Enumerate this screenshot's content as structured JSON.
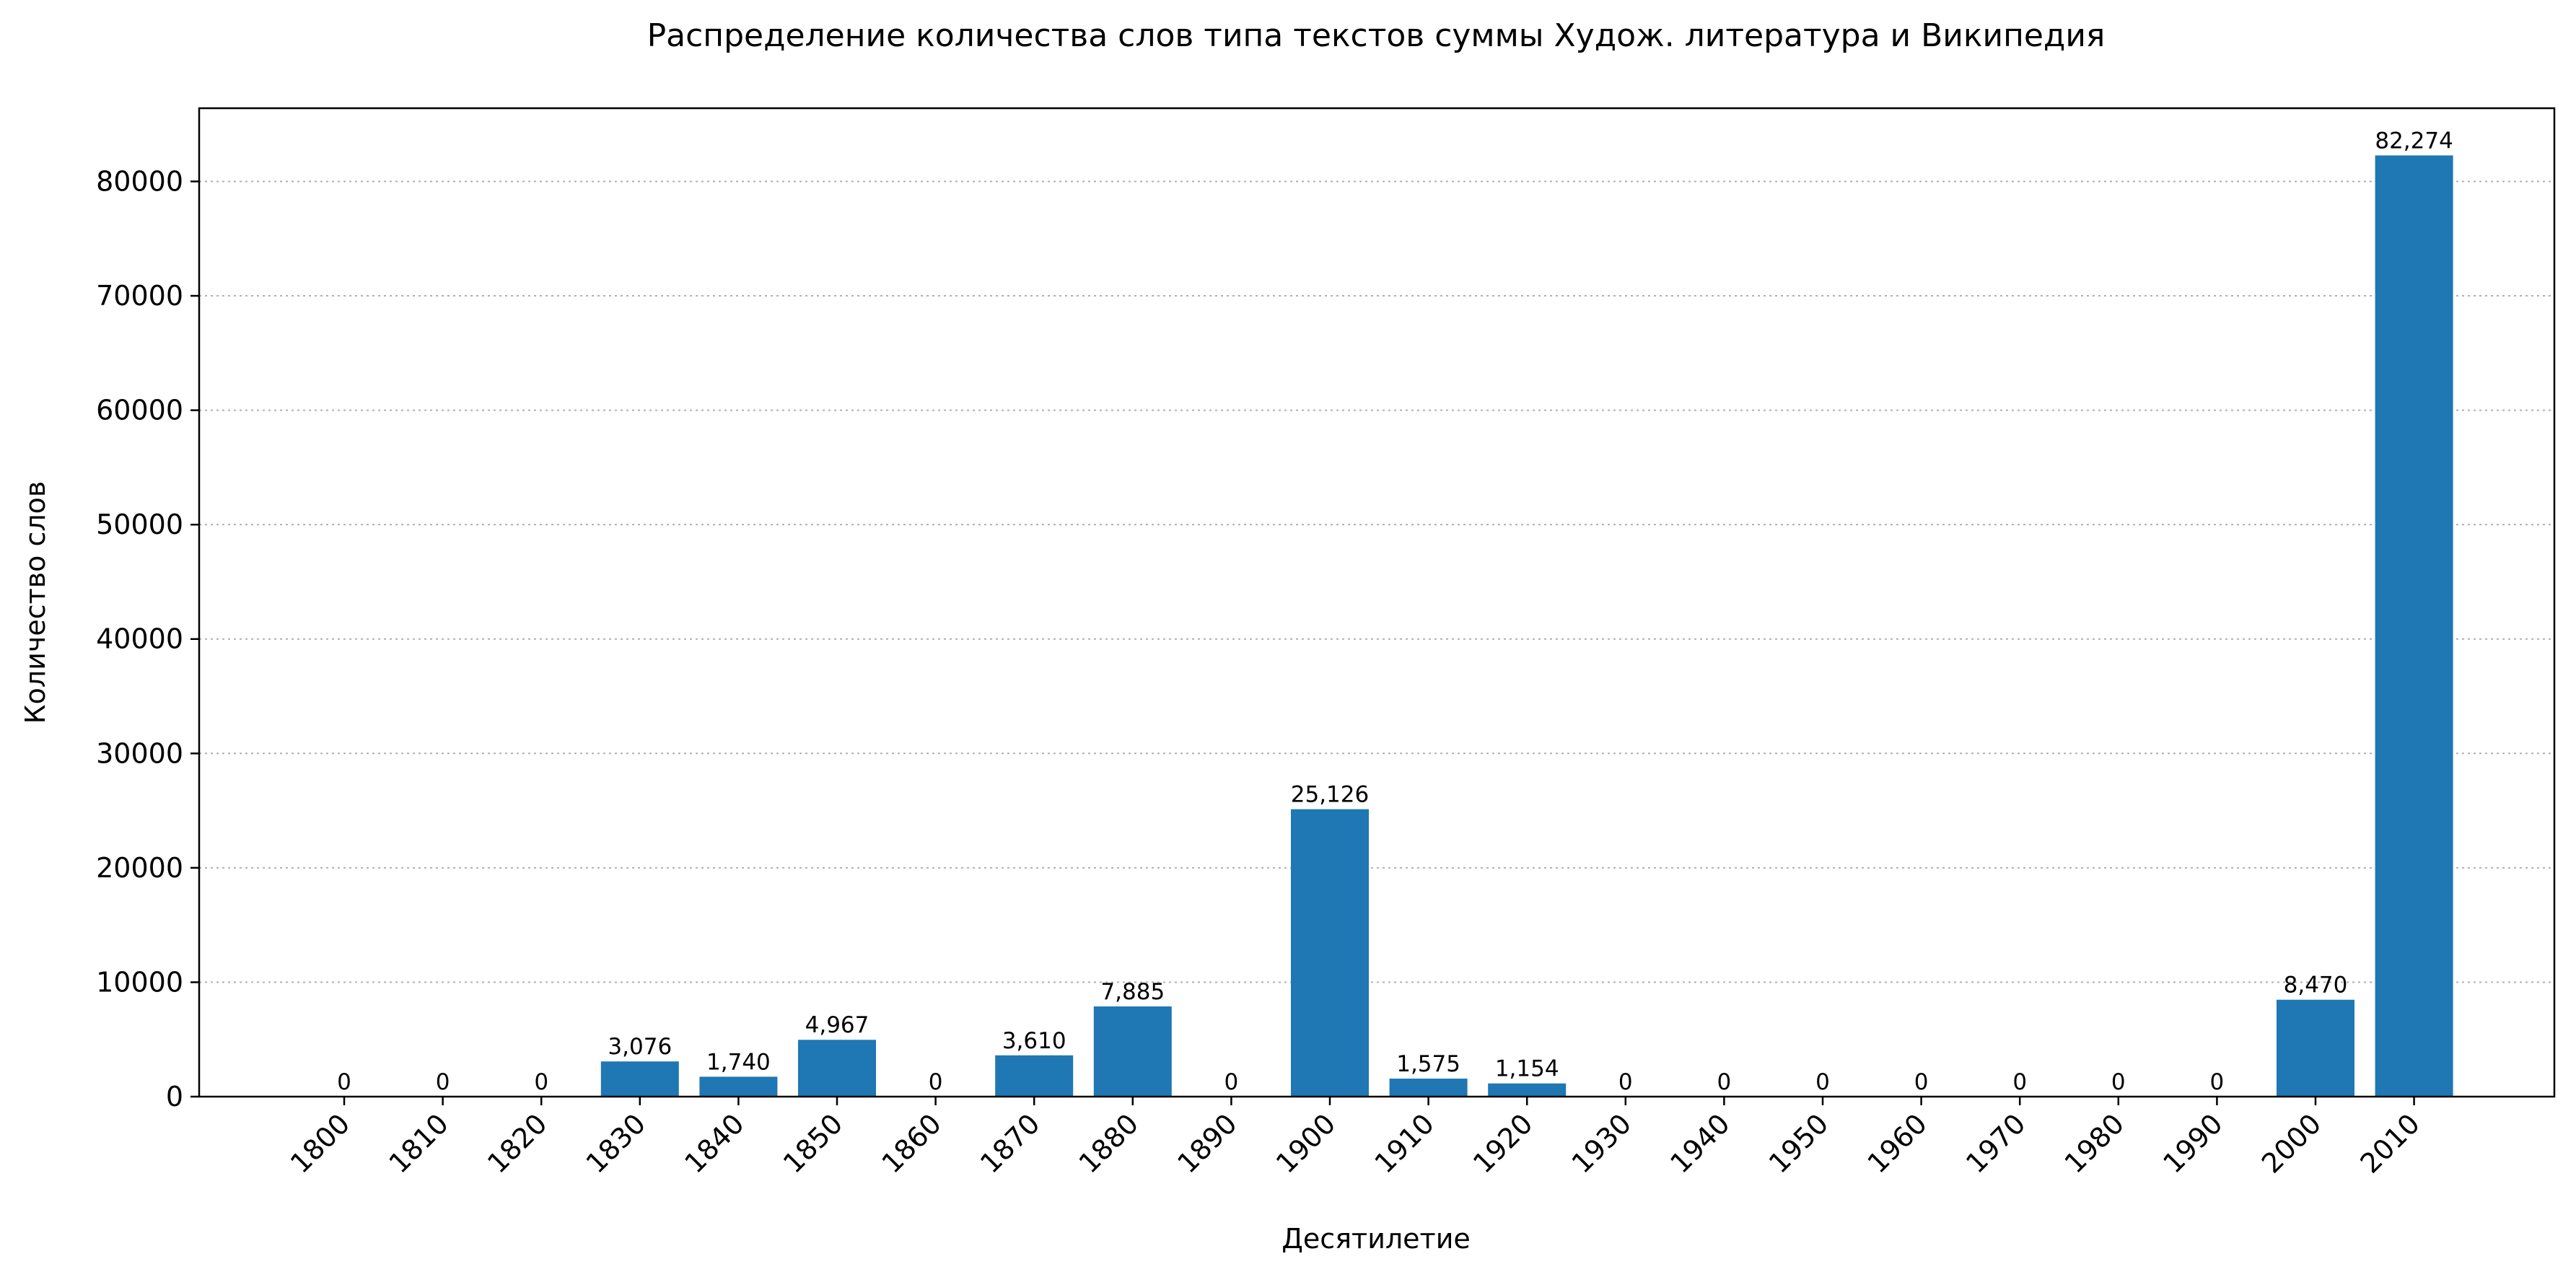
{
  "chart_data": {
    "type": "bar",
    "title": "Распределение количества слов типа текстов суммы Худож. литература и Википедия",
    "xlabel": "Десятилетие",
    "ylabel": "Количество слов",
    "categories": [
      "1800",
      "1810",
      "1820",
      "1830",
      "1840",
      "1850",
      "1860",
      "1870",
      "1880",
      "1890",
      "1900",
      "1910",
      "1920",
      "1930",
      "1940",
      "1950",
      "1960",
      "1970",
      "1980",
      "1990",
      "2000",
      "2010"
    ],
    "values": [
      0,
      0,
      0,
      3076,
      1740,
      4967,
      0,
      3610,
      7885,
      0,
      25126,
      1575,
      1154,
      0,
      0,
      0,
      0,
      0,
      0,
      0,
      8470,
      82274
    ],
    "data_labels": [
      "0",
      "0",
      "0",
      "3,076",
      "1,740",
      "4,967",
      "0",
      "3,610",
      "7,885",
      "0",
      "25,126",
      "1,575",
      "1,154",
      "0",
      "0",
      "0",
      "0",
      "0",
      "0",
      "0",
      "8,470",
      "82,274"
    ],
    "ylim": [
      0,
      86400
    ],
    "yticks": [
      0,
      10000,
      20000,
      30000,
      40000,
      50000,
      60000,
      70000,
      80000
    ],
    "ytick_labels": [
      "0",
      "10000",
      "20000",
      "30000",
      "40000",
      "50000",
      "60000",
      "70000",
      "80000"
    ],
    "grid": "horizontal dotted",
    "bar_color": "#1f77b4"
  }
}
